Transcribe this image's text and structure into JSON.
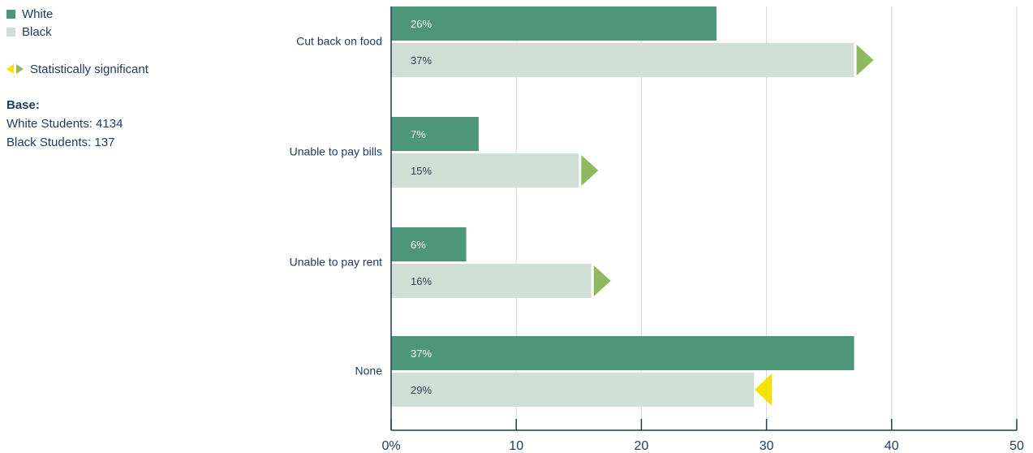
{
  "legend": {
    "items": [
      {
        "label": "White",
        "color": "#4d967a"
      },
      {
        "label": "Black",
        "color": "#d1e0d7"
      }
    ],
    "significance": {
      "label": "Statistically significant",
      "left_color": "#f5e200",
      "right_color": "#8fb95e"
    }
  },
  "base": {
    "title": "Base:",
    "lines": [
      "White Students: 4134",
      "Black Students: 137"
    ]
  },
  "chart_data": {
    "type": "bar",
    "orientation": "horizontal",
    "categories": [
      "Cut back on food",
      "Unable to pay bills",
      "Unable to pay rent",
      "None"
    ],
    "series": [
      {
        "name": "White",
        "values": [
          26,
          7,
          6,
          37
        ],
        "labels": [
          "26%",
          "7%",
          "6%",
          "37%"
        ],
        "color": "#4d967a"
      },
      {
        "name": "Black",
        "values": [
          37,
          15,
          16,
          29
        ],
        "labels": [
          "37%",
          "15%",
          "16%",
          "29%"
        ],
        "color": "#d1e0d7"
      }
    ],
    "significance": [
      {
        "category": "Cut back on food",
        "series": "Black",
        "direction": "right",
        "color": "#8fb95e"
      },
      {
        "category": "Unable to pay bills",
        "series": "Black",
        "direction": "right",
        "color": "#8fb95e"
      },
      {
        "category": "Unable to pay rent",
        "series": "Black",
        "direction": "right",
        "color": "#8fb95e"
      },
      {
        "category": "None",
        "series": "Black",
        "direction": "left",
        "color": "#f5e200"
      }
    ],
    "xlim": [
      0,
      50
    ],
    "xticks": [
      "0%",
      "10",
      "20",
      "30",
      "40",
      "50"
    ],
    "grid": true,
    "legend": "top-left"
  }
}
